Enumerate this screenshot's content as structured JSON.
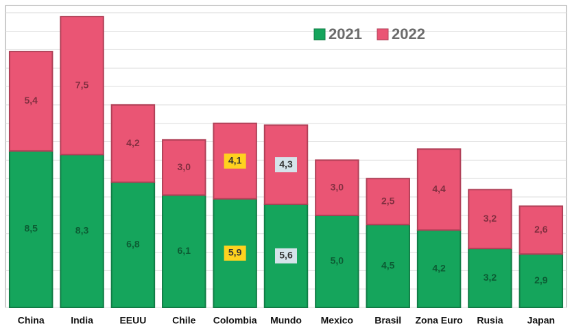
{
  "chart_data": {
    "type": "stacked_bar",
    "categories": [
      "China",
      "India",
      "EEUU",
      "Chile",
      "Colombia",
      "Mundo",
      "Mexico",
      "Brasil",
      "Zona Euro",
      "Rusia",
      "Japan"
    ],
    "series": [
      {
        "name": "2021",
        "color": "#15a55c",
        "values": [
          8.5,
          8.3,
          6.8,
          6.1,
          5.9,
          5.6,
          5.0,
          4.5,
          4.2,
          3.2,
          2.9
        ],
        "value_labels": [
          "8,5",
          "8,3",
          "6,8",
          "6,1",
          "5,9",
          "5,6",
          "5,0",
          "4,5",
          "4,2",
          "3,2",
          "2,9"
        ],
        "highlight_colors": [
          null,
          null,
          null,
          null,
          "#ffd21f",
          "#d5e3ea",
          null,
          null,
          null,
          null,
          null
        ]
      },
      {
        "name": "2022",
        "color": "#ea5574",
        "values": [
          5.4,
          7.5,
          4.2,
          3.0,
          4.1,
          4.3,
          3.0,
          2.5,
          4.4,
          3.2,
          2.6
        ],
        "value_labels": [
          "5,4",
          "7,5",
          "4,2",
          "3,0",
          "4,1",
          "4,3",
          "3,0",
          "2,5",
          "4,4",
          "3,2",
          "2,6"
        ],
        "highlight_colors": [
          null,
          null,
          null,
          null,
          "#ffd21f",
          "#d5e3ea",
          null,
          null,
          null,
          null,
          null
        ]
      }
    ],
    "ylim": [
      0,
      16.4
    ],
    "yticks": [
      0,
      1,
      2,
      3,
      4,
      5,
      6,
      7,
      8,
      9,
      10,
      11,
      12,
      13,
      14,
      15,
      16
    ],
    "grid": true,
    "legend": "top-right"
  }
}
